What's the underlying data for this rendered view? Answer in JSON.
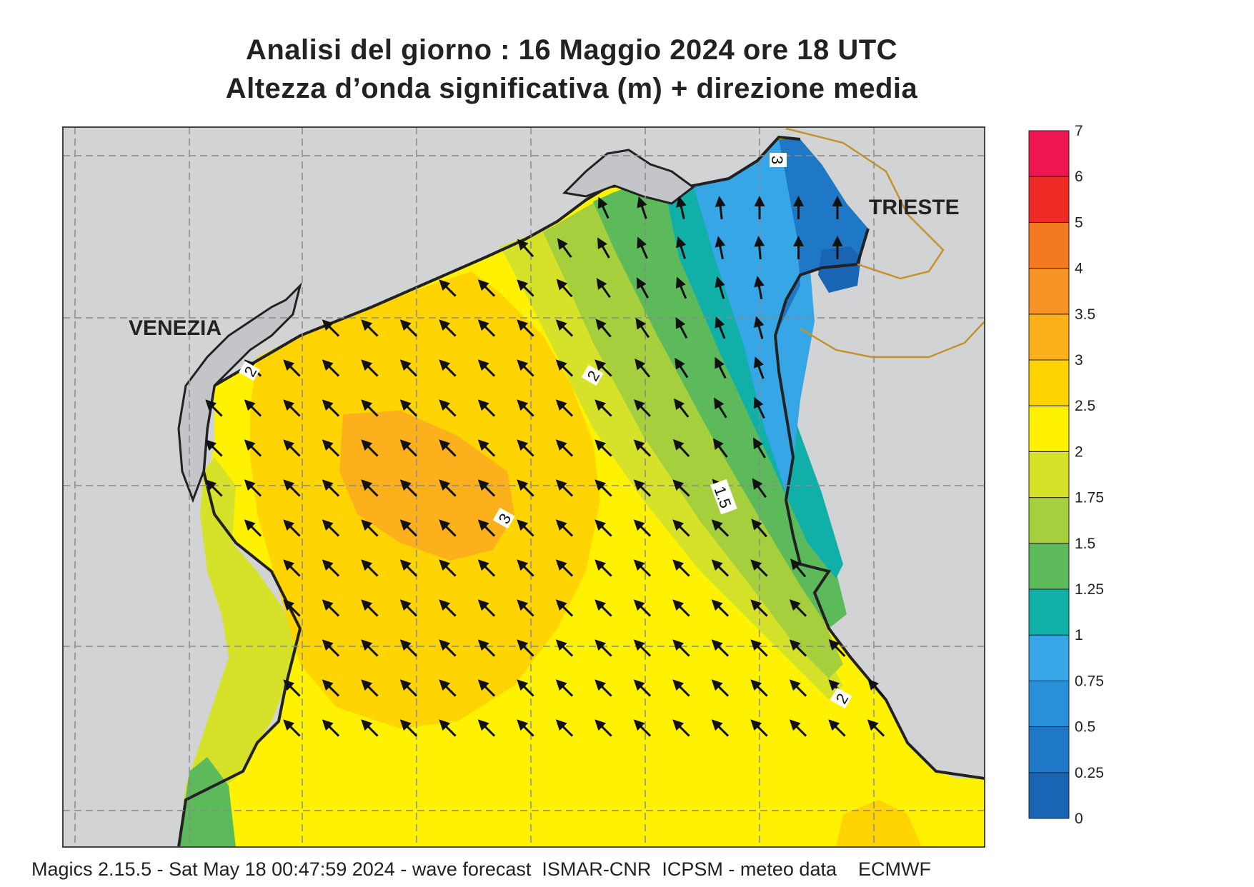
{
  "title_line1": "Analisi del giorno :  16   Maggio  2024   ore 18 UTC",
  "title_line2": "Altezza d’onda significativa (m) + direzione media",
  "footer": "Magics 2.15.5 - Sat May 18 00:47:59 2024 - wave forecast  ISMAR-CNR  ICPSM - meteo data    ECMWF",
  "cities": [
    {
      "name": "VENEZIA"
    },
    {
      "name": "TRIESTE"
    }
  ],
  "contour_labels": [
    "2",
    "3",
    "2",
    "1.5",
    "2",
    "3"
  ],
  "wave_direction": "NW (arrows pointing north-west, turning north near Trieste)",
  "colors": {
    "land": "#d2d3d5",
    "coast": "#222222",
    "grid": "#8a8a8a",
    "border": "#c8902a"
  },
  "legend": {
    "ticks": [
      "0",
      "0.25",
      "0.5",
      "0.75",
      "1",
      "1.25",
      "1.5",
      "1.75",
      "2",
      "2.5",
      "3",
      "3.5",
      "4",
      "5",
      "6",
      "7"
    ],
    "colors": [
      "#1a64b4",
      "#1f78c6",
      "#2890d8",
      "#36a6e6",
      "#10b0a8",
      "#5cba5a",
      "#a6cf3e",
      "#d6e22a",
      "#fff200",
      "#ffd400",
      "#fbb01c",
      "#f79426",
      "#f47a22",
      "#ee2b24",
      "#ed1650"
    ]
  }
}
